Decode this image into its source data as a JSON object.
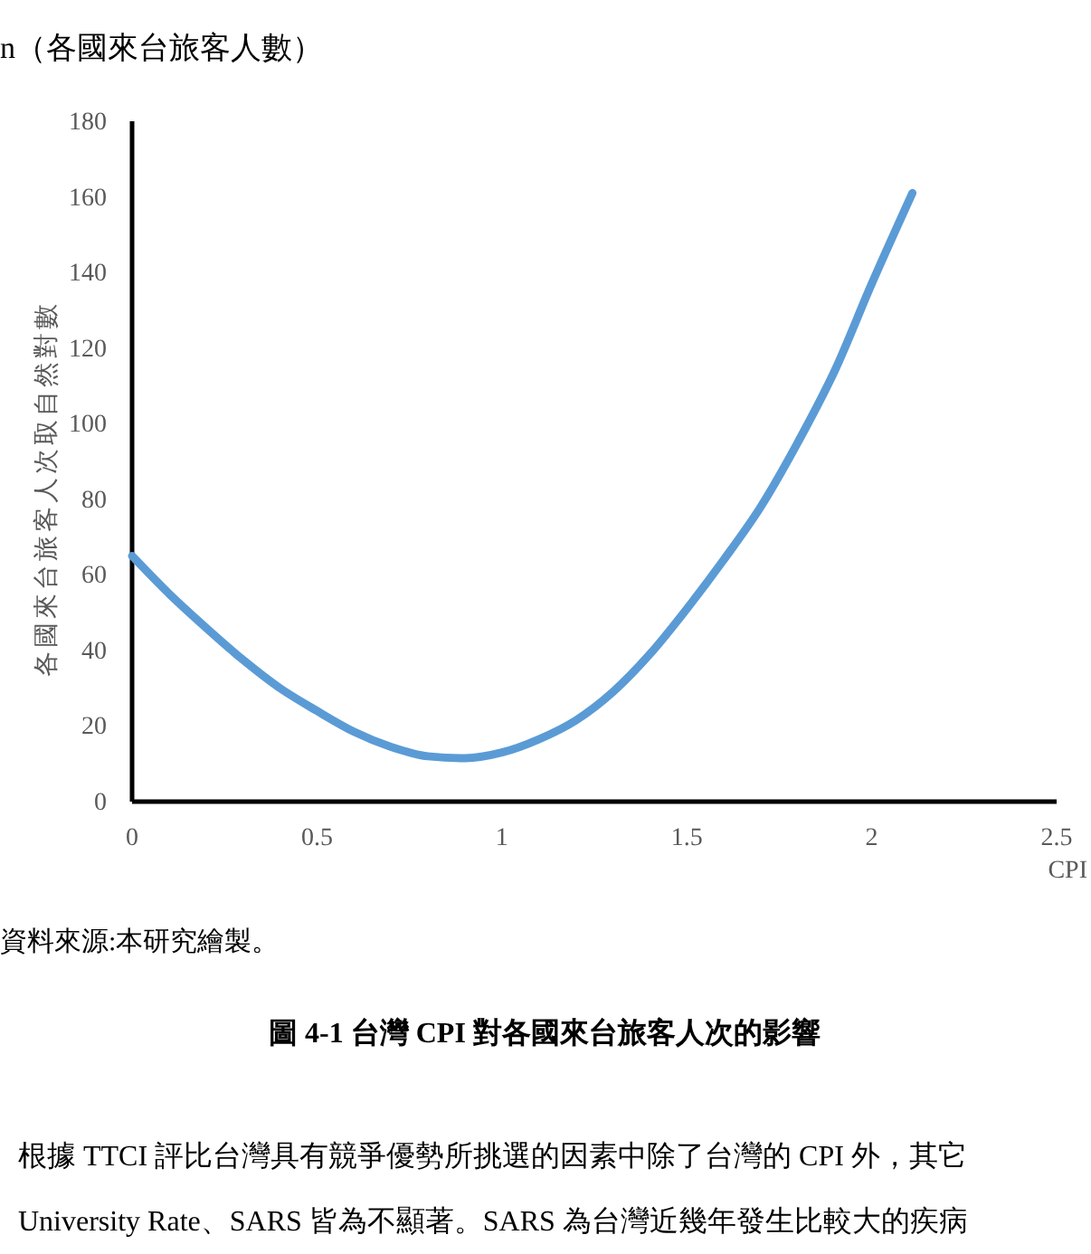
{
  "chart_data": {
    "type": "line",
    "title": "n（各國來台旅客人數）",
    "xlabel": "CPI",
    "ylabel": "各國來台旅客人次取自然對數",
    "x": [
      0,
      0.1,
      0.2,
      0.3,
      0.4,
      0.5,
      0.6,
      0.7,
      0.8,
      0.9,
      1.0,
      1.1,
      1.2,
      1.3,
      1.4,
      1.5,
      1.6,
      1.7,
      1.8,
      1.9,
      2.0,
      2.11
    ],
    "series": [
      {
        "color": "#5b9bd5",
        "values": [
          65,
          55,
          46,
          37.5,
          30,
          24,
          18.5,
          14.5,
          12,
          11.5,
          13,
          16.5,
          21.5,
          29,
          39,
          51,
          64,
          78,
          95,
          114,
          137,
          161
        ]
      }
    ],
    "xlim": [
      0,
      2.5
    ],
    "xticks": [
      0,
      0.5,
      1,
      1.5,
      2,
      2.5
    ],
    "ylim": [
      0,
      180
    ],
    "yticks": [
      0,
      20,
      40,
      60,
      80,
      100,
      120,
      140,
      160,
      180
    ],
    "grid": false,
    "marker": "none",
    "line_style": "solid",
    "annotations": [
      "資料來源:本研究繪製。",
      "圖 4-1  台灣 CPI  對各國來台旅客人次的影響",
      "根據 TTCI 評比台灣具有競爭優勢所挑選的因素中除了台灣的 CPI 外，其它",
      "University Rate、SARS 皆為不顯著。SARS 為台灣近幾年發生比較大的疾病"
    ]
  }
}
